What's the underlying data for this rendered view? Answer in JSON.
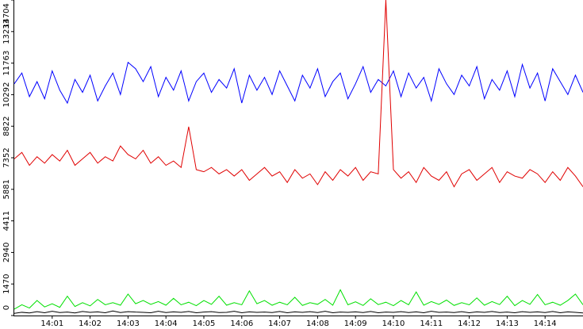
{
  "chart_data": {
    "type": "line",
    "x": [
      0,
      0.2,
      0.4,
      0.6,
      0.8,
      1,
      1.2,
      1.4,
      1.6,
      1.8,
      2,
      2.2,
      2.4,
      2.6,
      2.8,
      3,
      3.2,
      3.4,
      3.6,
      3.8,
      4,
      4.2,
      4.4,
      4.6,
      4.8,
      5,
      5.2,
      5.4,
      5.6,
      5.8,
      6,
      6.2,
      6.4,
      6.6,
      6.8,
      7,
      7.2,
      7.4,
      7.6,
      7.8,
      8,
      8.2,
      8.4,
      8.6,
      8.8,
      9,
      9.2,
      9.4,
      9.6,
      9.8,
      10,
      10.2,
      10.4,
      10.6,
      10.8,
      11,
      11.2,
      11.4,
      11.6,
      11.8,
      12,
      12.2,
      12.4,
      12.6,
      12.8,
      13,
      13.2,
      13.4,
      13.6,
      13.8,
      14,
      14.2,
      14.4,
      14.6,
      14.8,
      15
    ],
    "series": [
      {
        "color": "#0000ff",
        "values": [
          10800,
          11300,
          10200,
          10900,
          10100,
          11400,
          10500,
          9900,
          11000,
          10400,
          11200,
          10000,
          10700,
          11300,
          10300,
          11800,
          11500,
          10900,
          11600,
          10200,
          11100,
          10500,
          11400,
          10000,
          10900,
          11300,
          10400,
          11000,
          10600,
          11500,
          9900,
          11200,
          10500,
          11100,
          10300,
          11400,
          10700,
          10000,
          11200,
          10600,
          11500,
          10200,
          10900,
          11300,
          10100,
          10800,
          11600,
          10400,
          11000,
          10700,
          11400,
          10200,
          11300,
          10600,
          11100,
          10000,
          11500,
          10800,
          10300,
          11200,
          10700,
          11600,
          10100,
          11000,
          10500,
          11400,
          10200,
          11700,
          10600,
          11300,
          10000,
          11500,
          10900,
          10300,
          11200,
          10400
        ]
      },
      {
        "color": "#e00000",
        "values": [
          7300,
          7600,
          7000,
          7400,
          7100,
          7500,
          7200,
          7700,
          7000,
          7300,
          7600,
          7100,
          7400,
          7200,
          7900,
          7500,
          7300,
          7700,
          7100,
          7400,
          7000,
          7200,
          6900,
          8800,
          6800,
          6700,
          6900,
          6600,
          6800,
          6500,
          6800,
          6300,
          6600,
          6900,
          6500,
          6700,
          6200,
          6800,
          6400,
          6600,
          6100,
          6700,
          6300,
          6800,
          6500,
          6900,
          6300,
          6700,
          6600,
          14704,
          6800,
          6400,
          6700,
          6200,
          6900,
          6500,
          6300,
          6700,
          6000,
          6600,
          6800,
          6300,
          6600,
          6900,
          6200,
          6700,
          6500,
          6400,
          6800,
          6600,
          6200,
          6700,
          6300,
          6900,
          6500,
          6000
        ]
      },
      {
        "color": "#00e000",
        "values": [
          300,
          500,
          350,
          700,
          400,
          550,
          380,
          900,
          420,
          600,
          450,
          750,
          500,
          600,
          480,
          1000,
          550,
          700,
          520,
          650,
          480,
          800,
          500,
          620,
          460,
          700,
          520,
          900,
          480,
          600,
          500,
          1150,
          550,
          700,
          480,
          620,
          500,
          850,
          470,
          600,
          520,
          750,
          480,
          1200,
          500,
          640,
          470,
          780,
          510,
          620,
          460,
          700,
          500,
          1100,
          480,
          650,
          520,
          720,
          470,
          600,
          500,
          820,
          480,
          650,
          510,
          900,
          460,
          700,
          520,
          980,
          500,
          620,
          480,
          700,
          1000,
          500
        ]
      },
      {
        "color": "#000000",
        "values": [
          100,
          150,
          120,
          180,
          130,
          200,
          140,
          160,
          120,
          190,
          150,
          170,
          130,
          210,
          140,
          180,
          160,
          150,
          130,
          200,
          140,
          170,
          150,
          190,
          130,
          160,
          180,
          140,
          150,
          200,
          130,
          170,
          150,
          160,
          140,
          190,
          130,
          170,
          150,
          180,
          140,
          200,
          130,
          160,
          150,
          170,
          140,
          190,
          130,
          160,
          150,
          180,
          140,
          170,
          130,
          200,
          150,
          160,
          140,
          180,
          130,
          170,
          150,
          190,
          140,
          160,
          130,
          180,
          150,
          170,
          140,
          190,
          130,
          170,
          150,
          120
        ]
      }
    ],
    "xlim": [
      0,
      15
    ],
    "xticks": [
      {
        "value": 1,
        "label": "14:01"
      },
      {
        "value": 2,
        "label": "14:02"
      },
      {
        "value": 3,
        "label": "14:03"
      },
      {
        "value": 4,
        "label": "14:04"
      },
      {
        "value": 5,
        "label": "14:05"
      },
      {
        "value": 6,
        "label": "14:06"
      },
      {
        "value": 7,
        "label": "14:07"
      },
      {
        "value": 8,
        "label": "14:08"
      },
      {
        "value": 9,
        "label": "14:09"
      },
      {
        "value": 10,
        "label": "14:10"
      },
      {
        "value": 11,
        "label": "14:11"
      },
      {
        "value": 12,
        "label": "14:12"
      },
      {
        "value": 13,
        "label": "14:13"
      },
      {
        "value": 14,
        "label": "14:14"
      }
    ],
    "ylim": [
      0,
      14704
    ],
    "yticks": [
      0,
      1470,
      2940,
      4411,
      5881,
      7352,
      8822,
      10292,
      11763,
      13233,
      14704
    ]
  }
}
